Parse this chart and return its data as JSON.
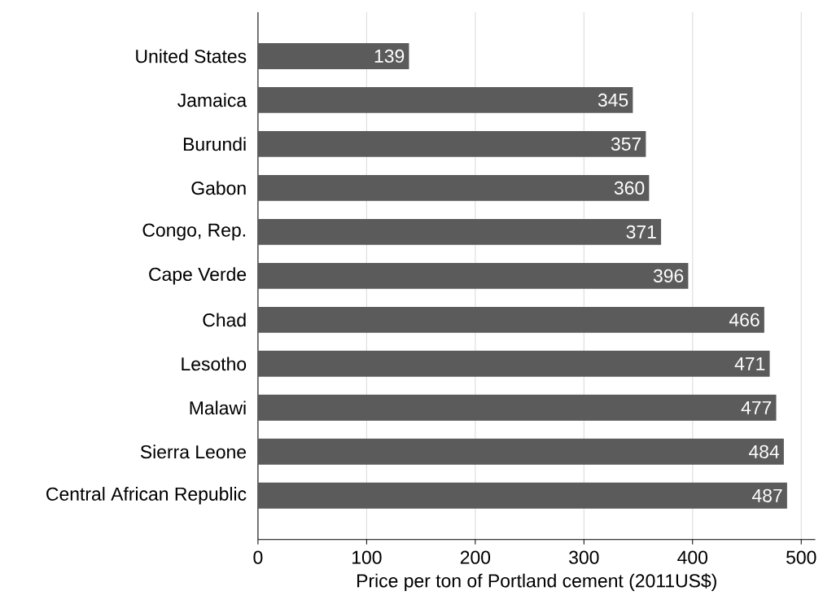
{
  "chart_data": {
    "type": "bar",
    "orientation": "horizontal",
    "xlabel": "Price per ton of Portland cement (2011US$)",
    "categories": [
      "United States",
      "Jamaica",
      "Burundi",
      "Gabon",
      "Congo, Rep.",
      "Cape Verde",
      "Chad",
      "Lesotho",
      "Malawi",
      "Sierra Leone",
      "Central African Republic"
    ],
    "values": [
      139,
      345,
      357,
      360,
      371,
      396,
      466,
      471,
      477,
      484,
      487
    ],
    "color": "#5b5b5b",
    "xlim": [
      0,
      513
    ],
    "xticks": [
      0,
      100,
      200,
      300,
      400,
      500
    ],
    "grid": "x",
    "data_labels": true
  }
}
